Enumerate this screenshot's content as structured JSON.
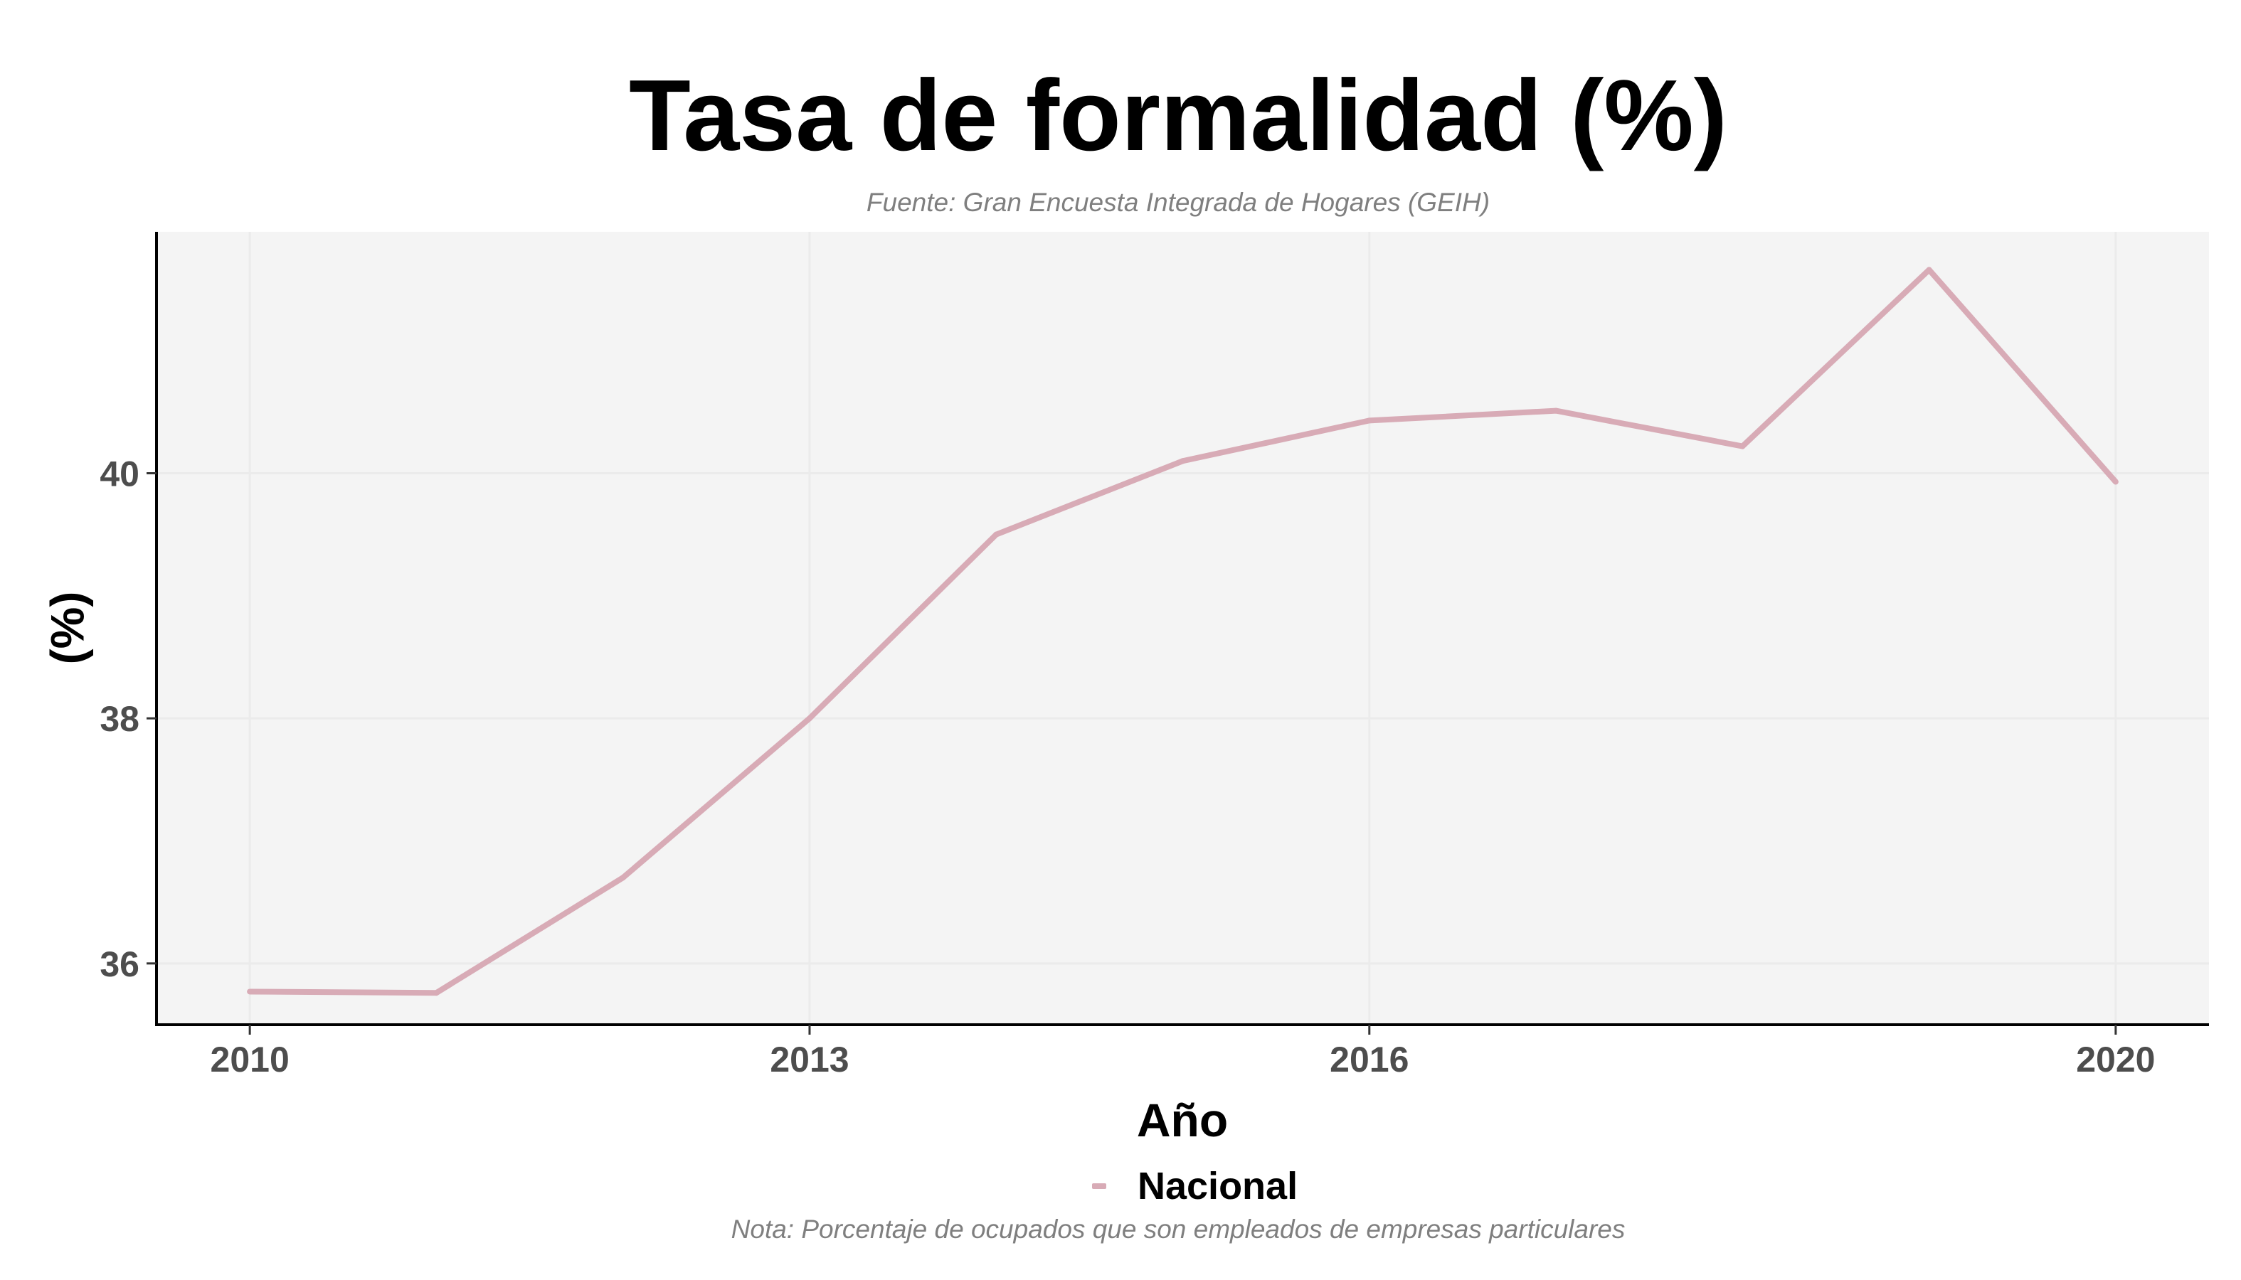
{
  "chart_data": {
    "type": "line",
    "title": "Tasa de formalidad (%)",
    "subtitle": "Fuente: Gran Encuesta Integrada de Hogares (GEIH)",
    "caption": "Nota: Porcentaje de ocupados que son empleados de empresas particulares",
    "xlabel": "Año",
    "ylabel": "(%)",
    "x": [
      2010,
      2011,
      2012,
      2013,
      2014,
      2015,
      2016,
      2017,
      2018,
      2019,
      2020
    ],
    "series": [
      {
        "name": "Nacional",
        "color": "#d8abb6",
        "values": [
          35.77,
          35.76,
          36.7,
          38.0,
          39.5,
          40.1,
          40.43,
          40.51,
          40.22,
          41.66,
          39.93
        ]
      }
    ],
    "xlim": [
      2009.5,
      2020.5
    ],
    "ylim": [
      35.5,
      41.97
    ],
    "x_ticks": [
      2010,
      2013,
      2016,
      2020
    ],
    "y_ticks": [
      36,
      38,
      40
    ],
    "x_tick_labels": [
      "2010",
      "2013",
      "2016",
      "2020"
    ],
    "y_tick_labels": [
      "36",
      "38",
      "40"
    ],
    "grid": true,
    "legend_position": "bottom",
    "panel_background": "#f4f4f4"
  }
}
